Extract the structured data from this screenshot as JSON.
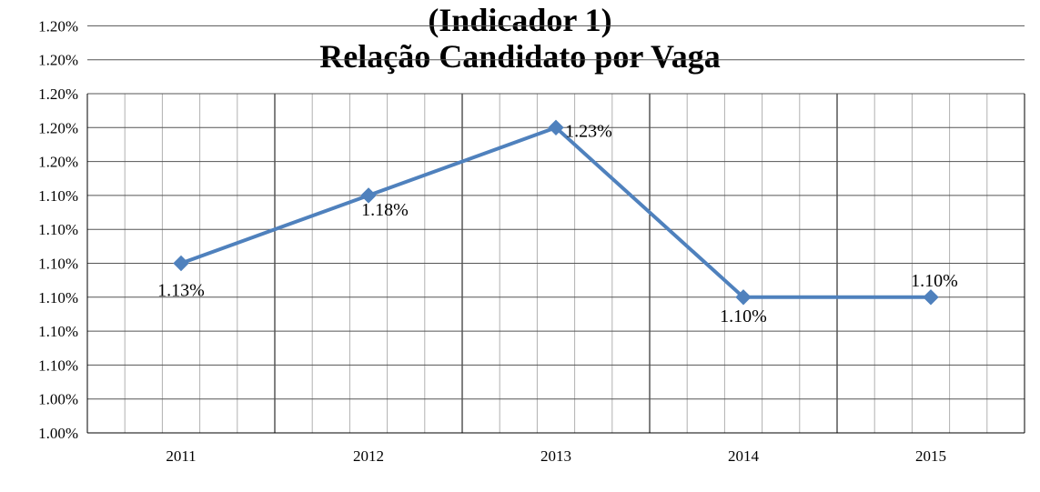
{
  "chart_data": {
    "type": "line",
    "title_lines": [
      "(Indicador 1)",
      "Relação Candidato por Vaga"
    ],
    "categories": [
      "2011",
      "2012",
      "2013",
      "2014",
      "2015"
    ],
    "series": [
      {
        "values": [
          1.125,
          1.175,
          1.225,
          1.1,
          1.1
        ],
        "color": "#4f81bd"
      }
    ],
    "data_labels": [
      "1.13%",
      "1.18%",
      "1.23%",
      "1.10%",
      "1.10%"
    ],
    "y_tick_labels": [
      "1.00%",
      "1.00%",
      "1.10%",
      "1.10%",
      "1.10%",
      "1.10%",
      "1.10%",
      "1.10%",
      "1.20%",
      "1.20%",
      "1.20%",
      "1.20%",
      "1.20%"
    ],
    "ylim": [
      1.0,
      1.25
    ],
    "ytick_step": 0.025,
    "xlabel": "",
    "ylabel": "",
    "grid": true,
    "legend": "none"
  }
}
